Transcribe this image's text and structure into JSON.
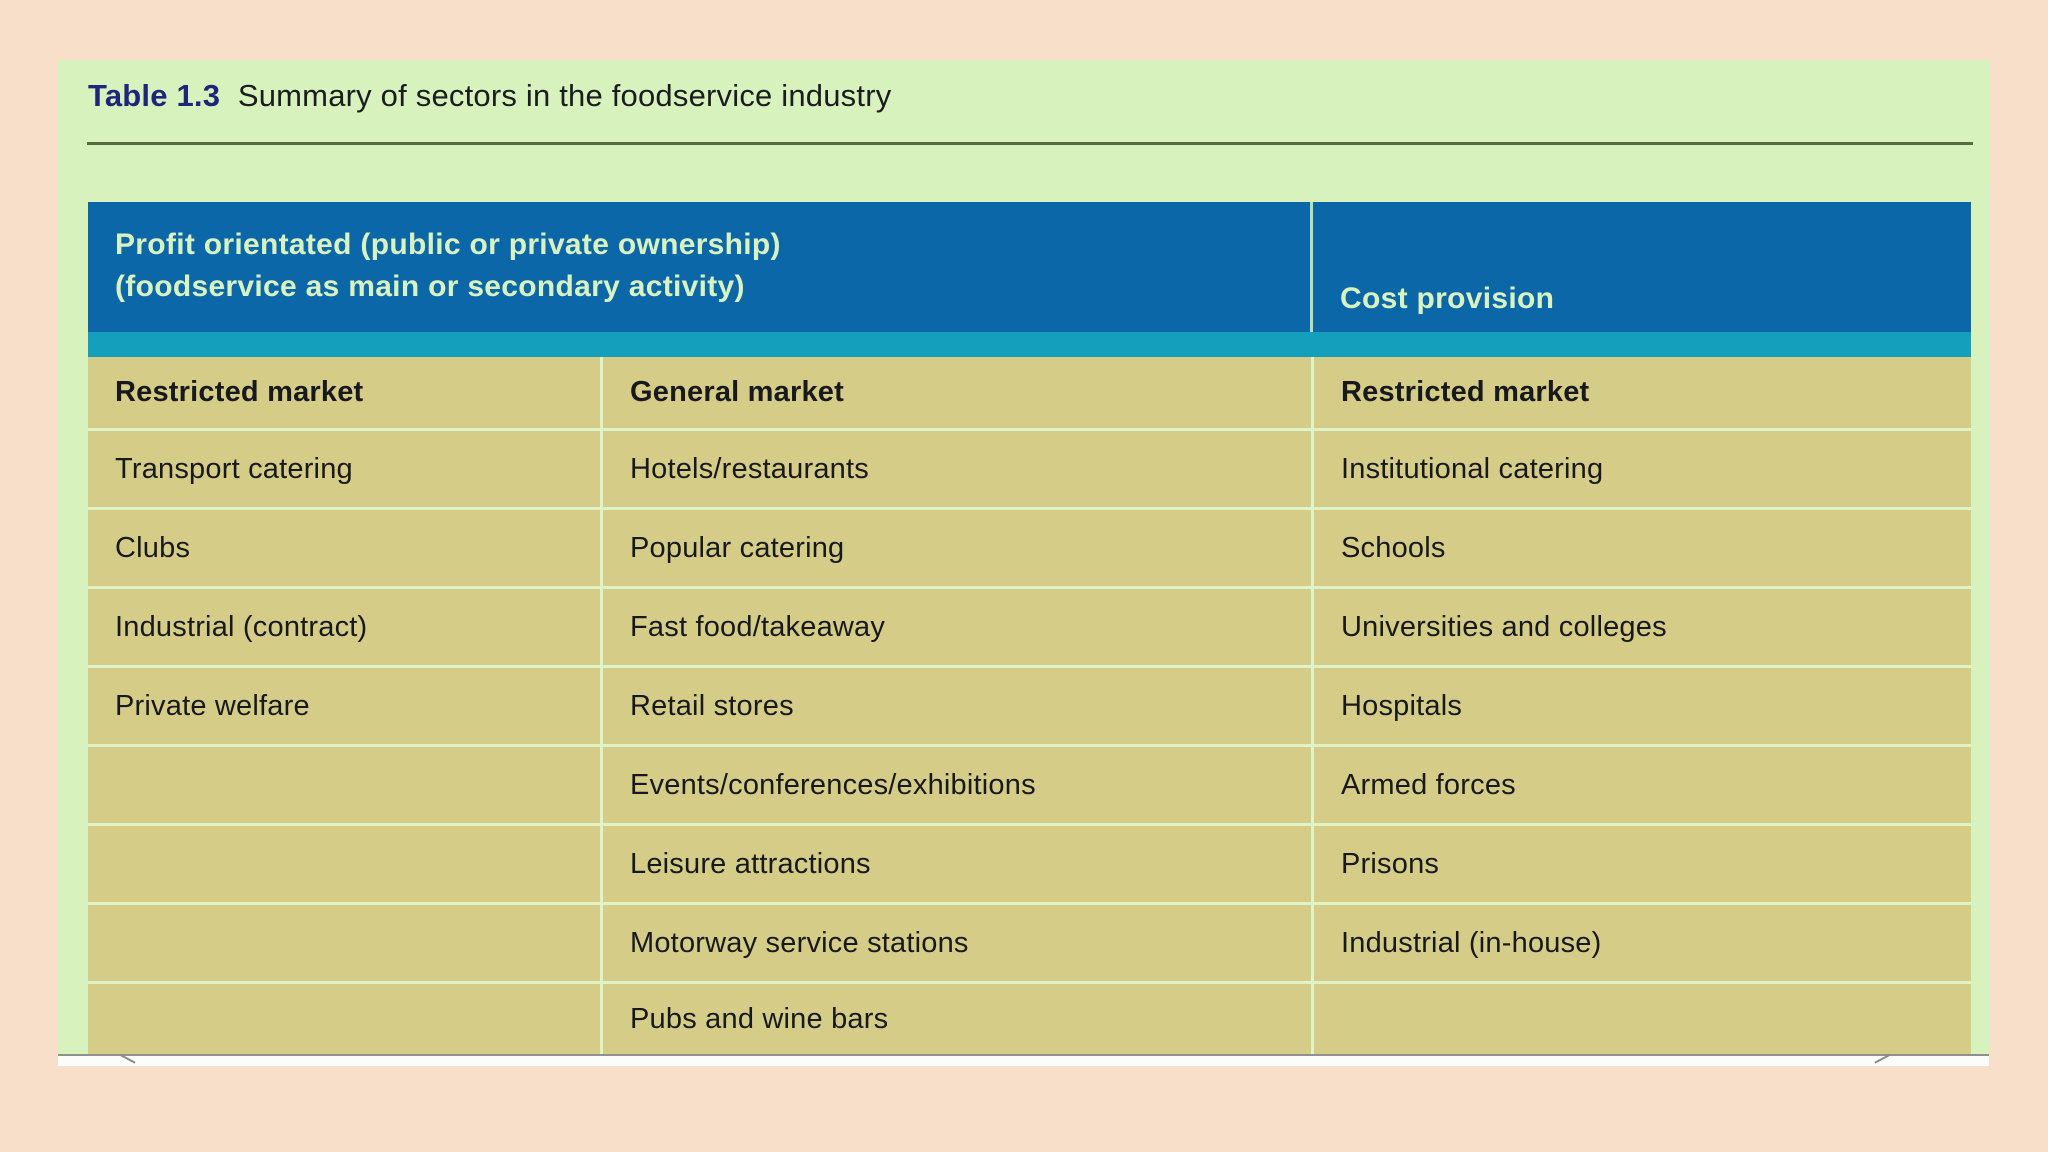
{
  "title": {
    "label": "Table 1.3",
    "text": "Summary of sectors in the foodservice industry"
  },
  "table": {
    "header": {
      "profit_line1": "Profit orientated (public or private ownership)",
      "profit_line2": "(foodservice as main or secondary activity)",
      "cost_provision": "Cost provision"
    },
    "columns": [
      {
        "header": "Restricted market",
        "items": [
          "Transport catering",
          "Clubs",
          "Industrial (contract)",
          "Private welfare",
          "",
          "",
          "",
          ""
        ]
      },
      {
        "header": "General market",
        "items": [
          "Hotels/restaurants",
          "Popular catering",
          "Fast food/takeaway",
          "Retail stores",
          "Events/conferences/exhibitions",
          "Leisure attractions",
          "Motorway service stations",
          "Pubs and wine bars"
        ]
      },
      {
        "header": "Restricted market",
        "items": [
          "Institutional catering",
          "Schools",
          "Universities and colleges",
          "Hospitals",
          "Armed forces",
          "Prisons",
          "Industrial (in-house)",
          ""
        ]
      }
    ]
  },
  "colors": {
    "page_background": "#f8dfca",
    "panel_green": "#d7f2bd",
    "header_blue": "#0b67a7",
    "teal_band": "#149fbd",
    "body_khaki": "#d5cc87",
    "header_text_green": "#d9f2c2",
    "title_navy": "#1f2579",
    "divider_green": "#def3c6",
    "rule_olive": "#56693f"
  }
}
